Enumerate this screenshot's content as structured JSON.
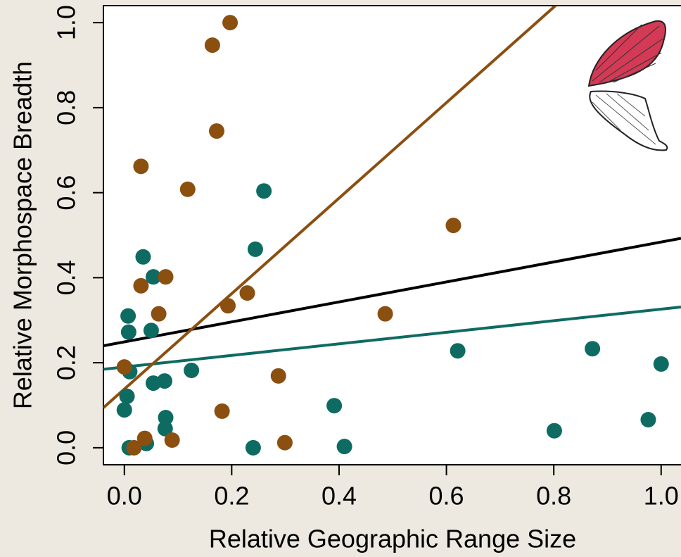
{
  "chart_data": {
    "type": "scatter",
    "xlabel": "Relative Geographic Range Size",
    "ylabel": "Relative Morphospace Breadth",
    "xlim": [
      -0.039,
      1.037
    ],
    "ylim": [
      -0.04,
      1.04
    ],
    "xticks": [
      {
        "value": 0,
        "label": "0.0"
      },
      0.2,
      0.4,
      0.6,
      0.8,
      {
        "value": 1,
        "label": "1.0"
      }
    ],
    "yticks": [
      {
        "value": 0,
        "label": "0.0"
      },
      0.2,
      0.4,
      0.6,
      0.8,
      {
        "value": 1,
        "label": "1.0"
      }
    ],
    "series": [
      {
        "color": "#0e6b62",
        "x": [
          0.26,
          0.244,
          0.035,
          0.054,
          0.007,
          0.008,
          0.05,
          0.125,
          0.01,
          0.054,
          0.075,
          0.005,
          0.0,
          0.077,
          0.076,
          0.009,
          0.041,
          0.24,
          0.391,
          0.41,
          0.621,
          0.872,
          1.0,
          0.976,
          0.801
        ],
        "values": [
          0.604,
          0.467,
          0.449,
          0.402,
          0.31,
          0.272,
          0.276,
          0.182,
          0.179,
          0.152,
          0.157,
          0.121,
          0.089,
          0.071,
          0.045,
          0.0,
          0.01,
          0.0,
          0.099,
          0.003,
          0.228,
          0.233,
          0.197,
          0.066,
          0.04
        ]
      },
      {
        "color": "#8b4f10",
        "x": [
          0.197,
          0.164,
          0.172,
          0.031,
          0.118,
          0.613,
          0.077,
          0.031,
          0.229,
          0.193,
          0.064,
          0.486,
          0.0,
          0.287,
          0.182,
          0.038,
          0.089,
          0.018,
          0.299
        ],
        "values": [
          1.0,
          0.947,
          0.745,
          0.662,
          0.608,
          0.523,
          0.402,
          0.381,
          0.364,
          0.334,
          0.315,
          0.315,
          0.19,
          0.169,
          0.086,
          0.022,
          0.018,
          0.0,
          0.012
        ]
      }
    ],
    "fits": [
      {
        "color": "#000000",
        "intercept": 0.249,
        "slope": 0.235
      },
      {
        "color": "#0e6b62",
        "intercept": 0.19,
        "slope": 0.136
      },
      {
        "color": "#8b4f10",
        "intercept": 0.138,
        "slope": 1.123
      }
    ]
  }
}
